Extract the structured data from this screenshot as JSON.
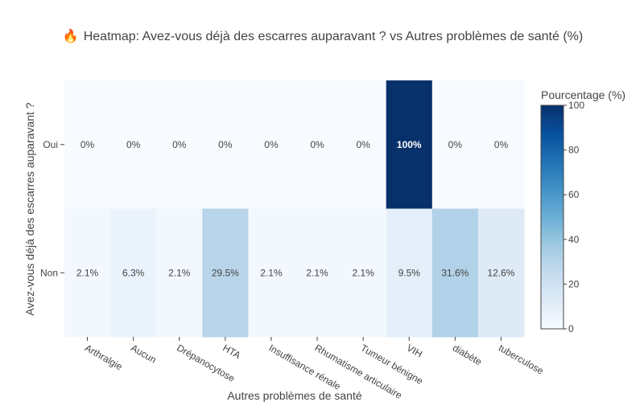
{
  "chart_data": {
    "type": "heatmap",
    "title_icon": "🔥",
    "title": "Heatmap: Avez-vous déjà des escarres auparavant ? vs Autres problèmes de santé (%)",
    "xlabel": "Autres problèmes de santé",
    "ylabel": "Avez-vous déjà des escarres auparavant ?",
    "x_categories": [
      "Arthralgie",
      "Aucun",
      "Drépanocytose",
      "HTA",
      "Insuffisance rénale",
      "Rhumatisme articulaire",
      "Tumeur bénigne",
      "VIH",
      "diabète",
      "tuberculose"
    ],
    "y_categories": [
      "Oui",
      "Non"
    ],
    "values": [
      [
        0,
        0,
        0,
        0,
        0,
        0,
        0,
        100,
        0,
        0
      ],
      [
        2.1,
        6.3,
        2.1,
        29.5,
        2.1,
        2.1,
        2.1,
        9.5,
        31.6,
        12.6
      ]
    ],
    "cell_labels": [
      [
        "0%",
        "0%",
        "0%",
        "0%",
        "0%",
        "0%",
        "0%",
        "100%",
        "0%",
        "0%"
      ],
      [
        "2.1%",
        "6.3%",
        "2.1%",
        "29.5%",
        "2.1%",
        "2.1%",
        "2.1%",
        "9.5%",
        "31.6%",
        "12.6%"
      ]
    ],
    "colorbar": {
      "title": "Pourcentage (%)",
      "range": [
        0,
        100
      ],
      "ticks": [
        "0",
        "20",
        "40",
        "60",
        "80",
        "100"
      ],
      "colorscale": [
        "#f7fbff",
        "#deebf7",
        "#c6dbef",
        "#9ecae1",
        "#6baed6",
        "#4292c6",
        "#2171b5",
        "#08519c",
        "#08306b"
      ]
    },
    "grid": false,
    "legend": "right"
  }
}
